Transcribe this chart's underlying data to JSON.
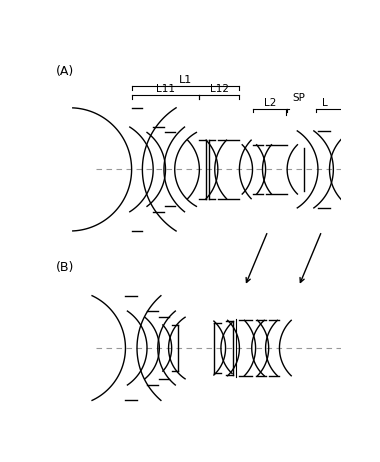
{
  "bg_color": "#ffffff",
  "line_color": "#000000",
  "dash_color": "#999999",
  "label_A": "(A)",
  "label_B": "(B)",
  "label_L1": "L1",
  "label_L11": "L11",
  "label_L12": "L12",
  "label_L2": "L2",
  "label_SP": "SP",
  "label_L": "L"
}
